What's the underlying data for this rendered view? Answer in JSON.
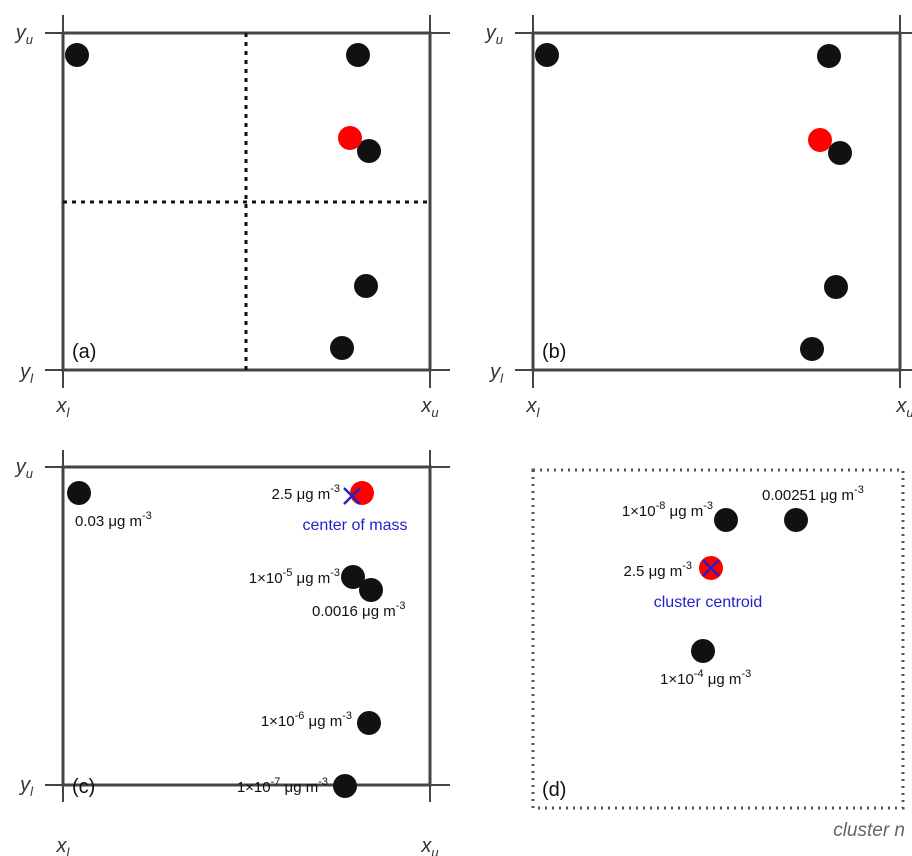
{
  "panels": [
    {
      "label": "(a)",
      "axes": {
        "y_upper": [
          {
            "text": "y"
          },
          {
            "text": "u",
            "sub": true
          }
        ],
        "y_lower": [
          {
            "text": "y"
          },
          {
            "text": "l",
            "sub": true
          }
        ],
        "x_lower": [
          {
            "text": "x"
          },
          {
            "text": "l",
            "sub": true
          }
        ],
        "x_upper": [
          {
            "text": "x"
          },
          {
            "text": "u",
            "sub": true
          }
        ]
      }
    },
    {
      "label": "(b)",
      "axes": {
        "y_upper": [
          {
            "text": "y"
          },
          {
            "text": "u",
            "sub": true
          }
        ],
        "y_lower": [
          {
            "text": "y"
          },
          {
            "text": "l",
            "sub": true
          }
        ],
        "x_lower": [
          {
            "text": "x"
          },
          {
            "text": "l",
            "sub": true
          }
        ],
        "x_upper": [
          {
            "text": "x"
          },
          {
            "text": "u",
            "sub": true
          }
        ]
      }
    },
    {
      "label": "(c)",
      "axes": {
        "y_upper": [
          {
            "text": "y"
          },
          {
            "text": "u",
            "sub": true
          }
        ],
        "y_lower": [
          {
            "text": "y"
          },
          {
            "text": "l",
            "sub": true
          }
        ],
        "x_lower": [
          {
            "text": "x"
          },
          {
            "text": "l",
            "sub": true
          }
        ],
        "x_upper": [
          {
            "text": "x"
          },
          {
            "text": "u",
            "sub": true
          }
        ]
      },
      "annotations": [
        [
          {
            "text": "0.03 μg m"
          },
          {
            "text": "-3",
            "sup": true
          }
        ],
        [
          {
            "text": "2.5 μg m"
          },
          {
            "text": "-3",
            "sup": true
          }
        ],
        [
          {
            "text": "1×10"
          },
          {
            "text": "-5",
            "sup": true
          },
          {
            "text": " μg m"
          },
          {
            "text": "-3",
            "sup": true
          }
        ],
        [
          {
            "text": "0.0016 μg m"
          },
          {
            "text": "-3",
            "sup": true
          }
        ],
        [
          {
            "text": "1×10"
          },
          {
            "text": "-6",
            "sup": true
          },
          {
            "text": " μg m"
          },
          {
            "text": "-3",
            "sup": true
          }
        ],
        [
          {
            "text": "1×10"
          },
          {
            "text": "-7",
            "sup": true
          },
          {
            "text": " μg m"
          },
          {
            "text": "-3",
            "sup": true
          }
        ]
      ],
      "marker_label": "center of mass"
    },
    {
      "label": "(d)",
      "annotations": [
        [
          {
            "text": "1×10"
          },
          {
            "text": "-8",
            "sup": true
          },
          {
            "text": " μg m"
          },
          {
            "text": "-3",
            "sup": true
          }
        ],
        [
          {
            "text": "0.00251 μg m"
          },
          {
            "text": "-3",
            "sup": true
          }
        ],
        [
          {
            "text": "2.5 μg m"
          },
          {
            "text": "-3",
            "sup": true
          }
        ],
        [
          {
            "text": "1×10"
          },
          {
            "text": "-4",
            "sup": true
          },
          {
            "text": " μg m"
          },
          {
            "text": "-3",
            "sup": true
          }
        ]
      ],
      "marker_label": "cluster centroid",
      "caption": "cluster n"
    }
  ]
}
